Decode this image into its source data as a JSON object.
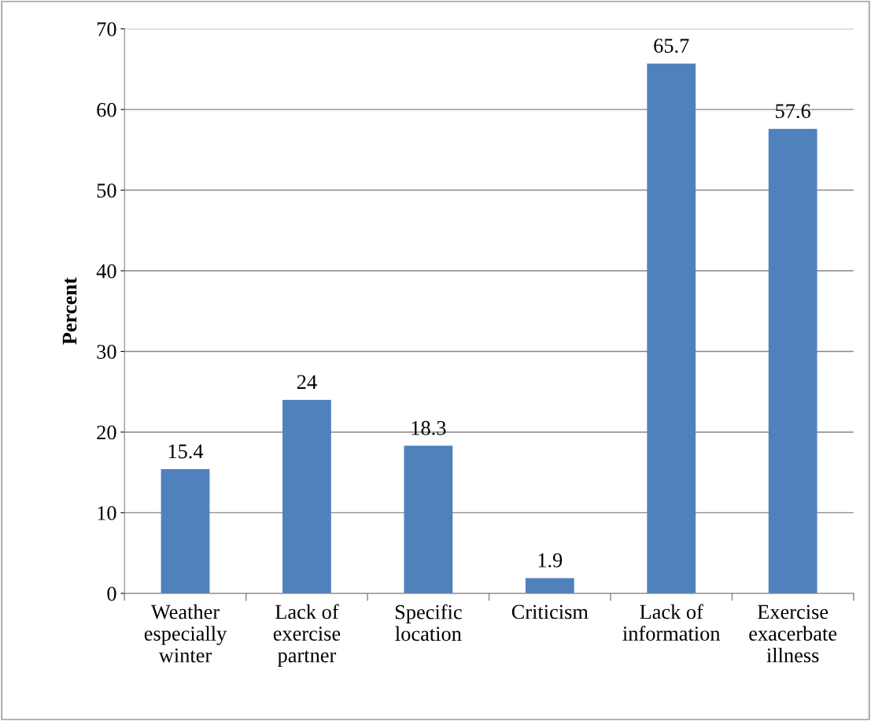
{
  "chart_data": {
    "type": "bar",
    "ylabel": "Percent",
    "categories": [
      "Weather\nespecially\nwinter",
      "Lack of\nexercise\npartner",
      "Specific\nlocation",
      "Criticism",
      "Lack of\ninformation",
      "Exercise\nexacerbate\nillness"
    ],
    "values": [
      15.4,
      24,
      18.3,
      1.9,
      65.7,
      57.6
    ],
    "color": "#4f81bd",
    "ylim": [
      0,
      70
    ],
    "yticks": [
      0,
      10,
      20,
      30,
      40,
      50,
      60,
      70
    ],
    "grid": "y",
    "data_labels": true
  }
}
